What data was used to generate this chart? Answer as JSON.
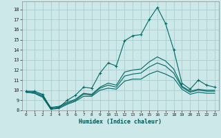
{
  "xlabel": "Humidex (Indice chaleur)",
  "bg_color": "#cce8e8",
  "grid_color": "#aacccc",
  "line_color": "#006666",
  "xlim": [
    -0.5,
    23.5
  ],
  "ylim": [
    8,
    18.8
  ],
  "xticks": [
    0,
    1,
    2,
    3,
    4,
    5,
    6,
    7,
    8,
    9,
    10,
    11,
    12,
    13,
    14,
    15,
    16,
    17,
    18,
    19,
    20,
    21,
    22,
    23
  ],
  "yticks": [
    8,
    9,
    10,
    11,
    12,
    13,
    14,
    15,
    16,
    17,
    18
  ],
  "line1_x": [
    0,
    1,
    2,
    3,
    4,
    5,
    6,
    7,
    8,
    9,
    10,
    11,
    12,
    13,
    14,
    15,
    16,
    17,
    18,
    19,
    20,
    21,
    22,
    23
  ],
  "line1_y": [
    9.9,
    9.9,
    9.6,
    8.2,
    8.3,
    9.0,
    9.5,
    10.3,
    10.2,
    11.7,
    12.7,
    12.4,
    14.9,
    15.4,
    15.5,
    17.0,
    18.2,
    16.6,
    14.0,
    10.7,
    10.1,
    11.0,
    10.5,
    10.3
  ],
  "line2_x": [
    0,
    1,
    2,
    3,
    4,
    5,
    6,
    7,
    8,
    9,
    10,
    11,
    12,
    13,
    14,
    15,
    16,
    17,
    18,
    19,
    20,
    21,
    22,
    23
  ],
  "line2_y": [
    9.9,
    9.8,
    9.5,
    8.3,
    8.4,
    8.8,
    9.1,
    9.7,
    9.6,
    10.3,
    10.7,
    10.5,
    11.8,
    12.0,
    12.1,
    12.8,
    13.3,
    12.9,
    12.1,
    10.4,
    9.9,
    10.1,
    10.0,
    10.0
  ],
  "line3_x": [
    0,
    1,
    2,
    3,
    4,
    5,
    6,
    7,
    8,
    9,
    10,
    11,
    12,
    13,
    14,
    15,
    16,
    17,
    18,
    19,
    20,
    21,
    22,
    23
  ],
  "line3_y": [
    9.8,
    9.7,
    9.4,
    8.2,
    8.3,
    8.7,
    9.0,
    9.6,
    9.5,
    10.2,
    10.5,
    10.3,
    11.4,
    11.6,
    11.7,
    12.3,
    12.7,
    12.4,
    11.7,
    10.3,
    9.8,
    10.0,
    9.9,
    9.9
  ],
  "line4_x": [
    0,
    1,
    2,
    3,
    4,
    5,
    6,
    7,
    8,
    9,
    10,
    11,
    12,
    13,
    14,
    15,
    16,
    17,
    18,
    19,
    20,
    21,
    22,
    23
  ],
  "line4_y": [
    9.8,
    9.7,
    9.3,
    8.1,
    8.2,
    8.6,
    8.9,
    9.4,
    9.4,
    10.0,
    10.2,
    10.1,
    10.9,
    11.1,
    11.1,
    11.6,
    11.9,
    11.6,
    11.2,
    10.1,
    9.6,
    9.8,
    9.7,
    9.7
  ]
}
